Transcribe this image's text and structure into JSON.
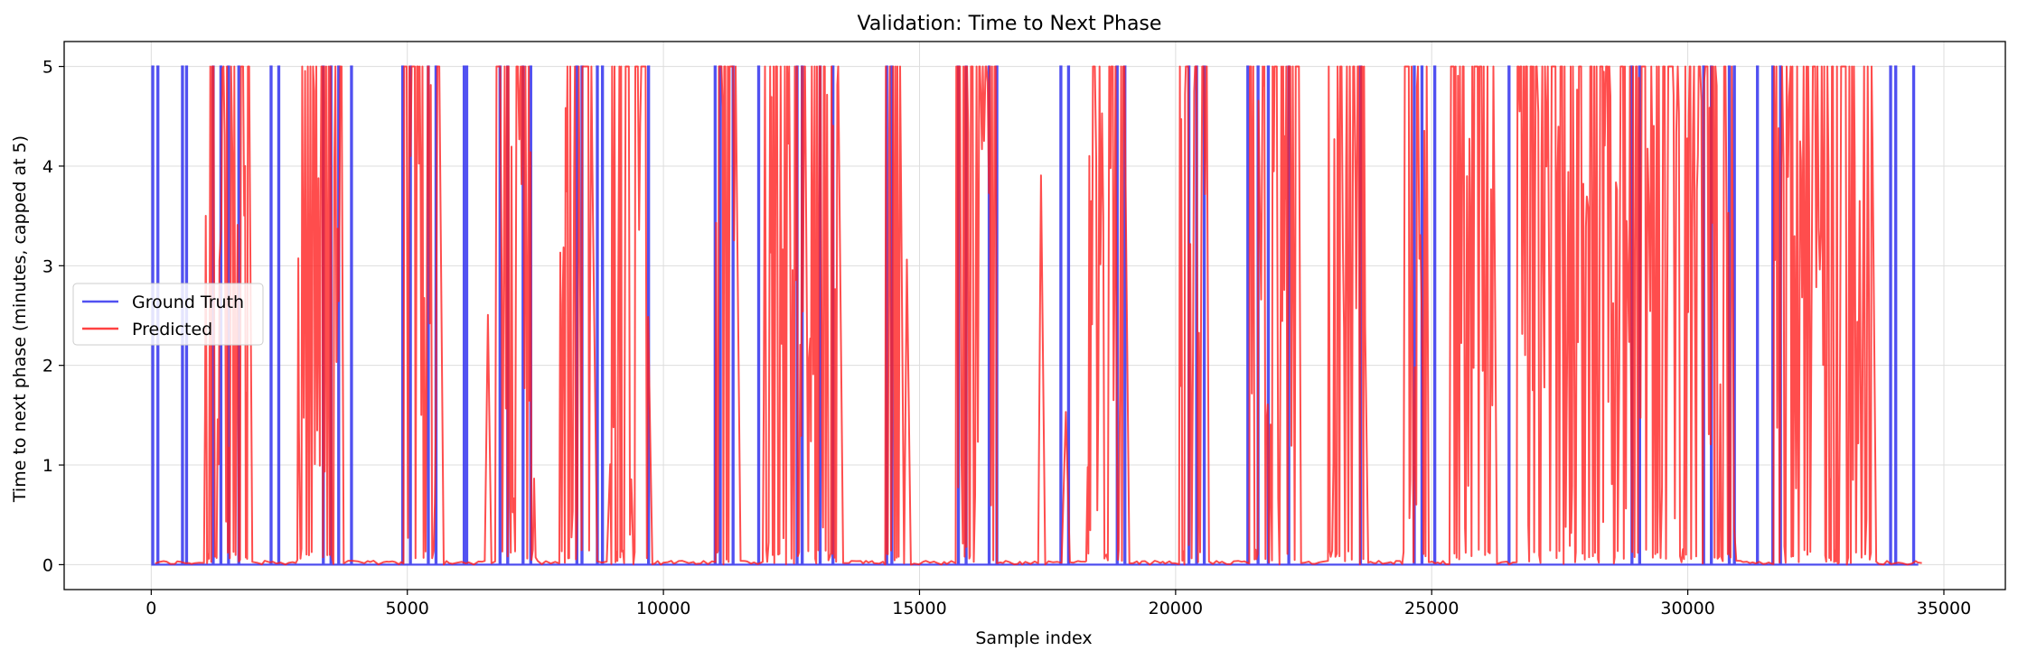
{
  "chart_data": {
    "type": "line",
    "title": "Validation: Time to Next Phase",
    "xlabel": "Sample index",
    "ylabel": "Time to next phase (minutes, capped at 5)",
    "xlim": [
      -1700,
      36200
    ],
    "ylim": [
      -0.25,
      5.25
    ],
    "x_ticks": [
      0,
      5000,
      10000,
      15000,
      20000,
      25000,
      30000,
      35000
    ],
    "x_tick_labels": [
      "0",
      "5000",
      "10000",
      "15000",
      "20000",
      "25000",
      "30000",
      "35000"
    ],
    "y_ticks": [
      0,
      1,
      2,
      3,
      4,
      5
    ],
    "y_tick_labels": [
      "0",
      "1",
      "2",
      "3",
      "4",
      "5"
    ],
    "grid": true,
    "legend_position": "center-left",
    "series": [
      {
        "name": "Ground Truth",
        "color": "#3333ee",
        "spikes": [
          20,
          120,
          600,
          680,
          1200,
          1350,
          1500,
          1700,
          2330,
          2480,
          3350,
          3500,
          3650,
          3900,
          4900,
          5050,
          5400,
          5550,
          6100,
          6150,
          6800,
          6950,
          7250,
          7400,
          8300,
          8400,
          8700,
          8800,
          9700,
          11000,
          11100,
          11350,
          11850,
          12600,
          12700,
          13050,
          13300,
          14350,
          14450,
          15750,
          15900,
          16350,
          16500,
          17750,
          17900,
          18850,
          19000,
          20250,
          20400,
          20550,
          21400,
          21600,
          21800,
          22200,
          23600,
          24650,
          24800,
          25050,
          26500,
          28900,
          29050,
          30300,
          30450,
          30800,
          30900,
          31350,
          31650,
          31800,
          33950,
          34050,
          34400
        ],
        "values_note": "Square pulses rising from 0 to 5 at listed sample indices, dropping back to 0"
      },
      {
        "name": "Predicted",
        "color": "#ff2020",
        "dense_regions": [
          [
            1000,
            1900
          ],
          [
            2800,
            3700
          ],
          [
            4900,
            5600
          ],
          [
            6700,
            7500
          ],
          [
            7900,
            8600
          ],
          [
            8900,
            9700
          ],
          [
            11000,
            11400
          ],
          [
            11900,
            13400
          ],
          [
            14300,
            14600
          ],
          [
            15700,
            16500
          ],
          [
            18200,
            19000
          ],
          [
            20000,
            20600
          ],
          [
            21400,
            22400
          ],
          [
            22900,
            23700
          ],
          [
            24400,
            24900
          ],
          [
            25300,
            26200
          ],
          [
            26600,
            30900
          ],
          [
            31600,
            33600
          ]
        ]
      }
    ]
  }
}
